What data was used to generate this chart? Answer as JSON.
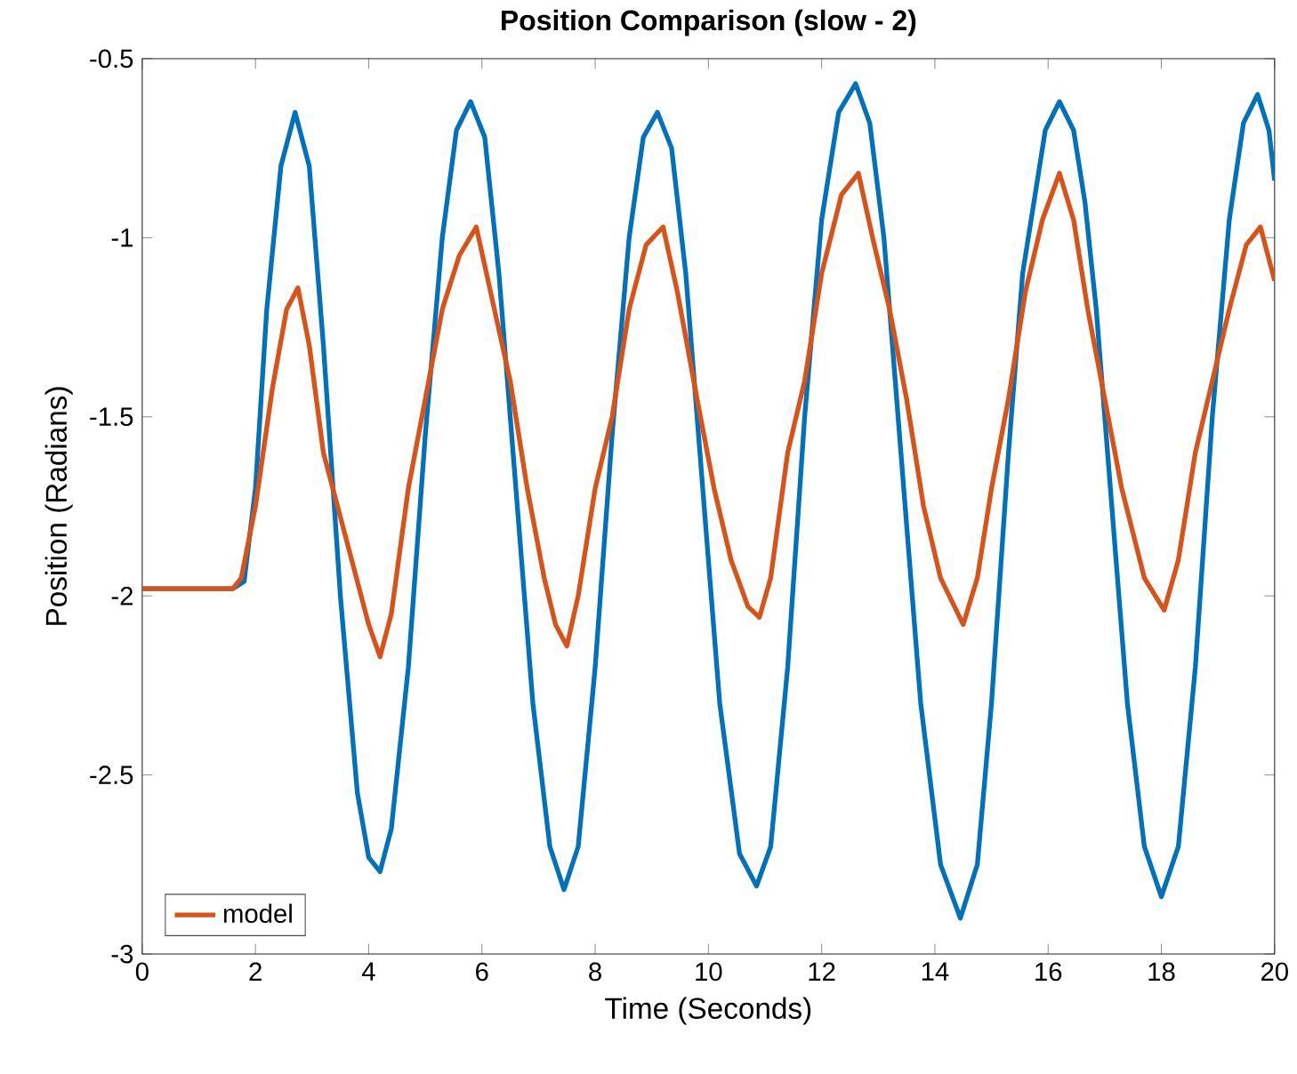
{
  "chart_data": {
    "type": "line",
    "title": "Position Comparison (slow - 2)",
    "xlabel": "Time (Seconds)",
    "ylabel": "Position (Radians)",
    "xlim": [
      0,
      20
    ],
    "ylim": [
      -3,
      -0.5
    ],
    "xticks": [
      0,
      2,
      4,
      6,
      8,
      10,
      12,
      14,
      16,
      18,
      20
    ],
    "yticks": [
      -3,
      -2.5,
      -2,
      -1.5,
      -1,
      -0.5
    ],
    "legend": "bottom left",
    "grid": false,
    "marker": "none",
    "line_style": "solid",
    "series": [
      {
        "color": "#0072bd",
        "x": [
          0,
          1.6,
          1.8,
          2.0,
          2.2,
          2.45,
          2.7,
          2.95,
          3.2,
          3.5,
          3.8,
          4.0,
          4.2,
          4.4,
          4.7,
          5.0,
          5.3,
          5.55,
          5.8,
          6.05,
          6.3,
          6.6,
          6.9,
          7.2,
          7.45,
          7.7,
          8.0,
          8.3,
          8.6,
          8.85,
          9.1,
          9.35,
          9.6,
          9.9,
          10.2,
          10.55,
          10.85,
          11.1,
          11.4,
          11.7,
          12.0,
          12.3,
          12.6,
          12.85,
          13.1,
          13.4,
          13.75,
          14.1,
          14.45,
          14.75,
          15.0,
          15.3,
          15.55,
          15.75,
          15.95,
          16.2,
          16.45,
          16.65,
          16.85,
          17.1,
          17.4,
          17.7,
          18.0,
          18.3,
          18.6,
          18.9,
          19.2,
          19.45,
          19.7,
          19.9,
          20
        ],
        "values": [
          -1.98,
          -1.98,
          -1.96,
          -1.7,
          -1.2,
          -0.8,
          -0.65,
          -0.8,
          -1.3,
          -2.0,
          -2.55,
          -2.73,
          -2.77,
          -2.65,
          -2.2,
          -1.55,
          -1.0,
          -0.7,
          -0.62,
          -0.72,
          -1.1,
          -1.7,
          -2.3,
          -2.7,
          -2.82,
          -2.7,
          -2.2,
          -1.55,
          -1.0,
          -0.72,
          -0.65,
          -0.75,
          -1.1,
          -1.7,
          -2.3,
          -2.72,
          -2.81,
          -2.7,
          -2.2,
          -1.5,
          -0.95,
          -0.65,
          -0.57,
          -0.68,
          -1.0,
          -1.6,
          -2.3,
          -2.75,
          -2.9,
          -2.75,
          -2.3,
          -1.6,
          -1.1,
          -0.9,
          -0.7,
          -0.62,
          -0.7,
          -0.9,
          -1.2,
          -1.7,
          -2.3,
          -2.7,
          -2.84,
          -2.7,
          -2.2,
          -1.5,
          -0.95,
          -0.68,
          -0.6,
          -0.7,
          -0.84
        ]
      },
      {
        "name": "model",
        "color": "#d95319",
        "x": [
          0,
          1.6,
          1.75,
          2.0,
          2.3,
          2.55,
          2.75,
          2.95,
          3.2,
          3.45,
          3.7,
          4.0,
          4.2,
          4.4,
          4.7,
          5.0,
          5.3,
          5.6,
          5.9,
          6.15,
          6.5,
          6.8,
          7.1,
          7.3,
          7.5,
          7.7,
          8.0,
          8.3,
          8.6,
          8.9,
          9.2,
          9.45,
          9.8,
          10.1,
          10.4,
          10.7,
          10.9,
          11.1,
          11.4,
          11.7,
          12.0,
          12.35,
          12.65,
          12.9,
          13.2,
          13.5,
          13.8,
          14.1,
          14.5,
          14.75,
          15.0,
          15.3,
          15.6,
          15.9,
          16.2,
          16.45,
          16.7,
          17.0,
          17.3,
          17.7,
          18.05,
          18.3,
          18.6,
          18.9,
          19.2,
          19.5,
          19.75,
          20
        ],
        "values": [
          -1.98,
          -1.98,
          -1.95,
          -1.75,
          -1.42,
          -1.2,
          -1.14,
          -1.3,
          -1.6,
          -1.75,
          -1.9,
          -2.08,
          -2.17,
          -2.05,
          -1.7,
          -1.45,
          -1.2,
          -1.05,
          -0.97,
          -1.15,
          -1.4,
          -1.7,
          -1.95,
          -2.08,
          -2.14,
          -2.0,
          -1.7,
          -1.5,
          -1.2,
          -1.02,
          -0.97,
          -1.15,
          -1.45,
          -1.7,
          -1.9,
          -2.03,
          -2.06,
          -1.95,
          -1.6,
          -1.4,
          -1.1,
          -0.88,
          -0.82,
          -1.0,
          -1.2,
          -1.45,
          -1.75,
          -1.95,
          -2.08,
          -1.95,
          -1.7,
          -1.45,
          -1.15,
          -0.95,
          -0.82,
          -0.95,
          -1.2,
          -1.45,
          -1.7,
          -1.95,
          -2.04,
          -1.9,
          -1.6,
          -1.4,
          -1.2,
          -1.02,
          -0.97,
          -1.12
        ]
      }
    ]
  }
}
